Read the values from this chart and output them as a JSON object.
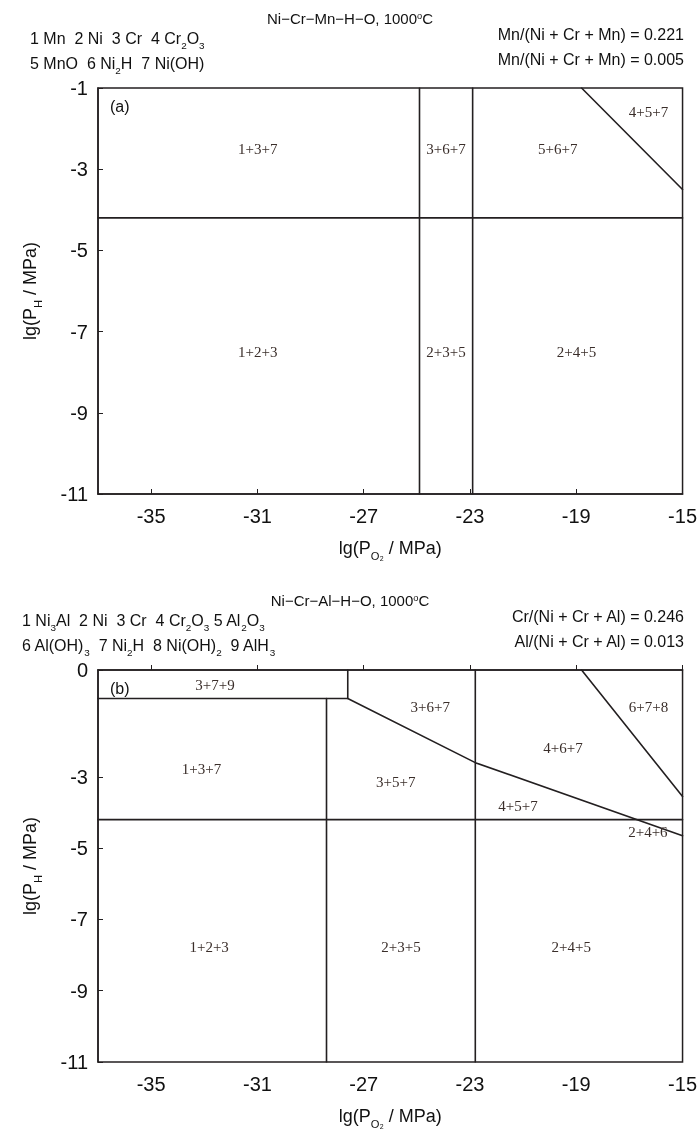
{
  "chart_data": [
    {
      "type": "line",
      "title": "Ni−Cr−Mn−H−O, 1000$^{o}$C",
      "xlabel": "lg(P$_{O₂}$ / MPa)",
      "ylabel": "lg(P$_{H}$ / MPa)",
      "xlim": [
        -37,
        -15
      ],
      "xticks": [
        -35,
        -31,
        -27,
        -23,
        -19,
        -15
      ],
      "ylim": [
        -11,
        -1
      ],
      "yticks": [
        -1,
        -3,
        -5,
        -7,
        -9,
        -11
      ],
      "series": [
        {
          "color": "#231f20",
          "x": [
            -24.9,
            -24.9
          ],
          "values": [
            -11,
            -1
          ]
        },
        {
          "color": "#231f20",
          "x": [
            -22.9,
            -22.9
          ],
          "values": [
            -11,
            -1
          ]
        },
        {
          "color": "#231f20",
          "x": [
            -37,
            -15
          ],
          "values": [
            -4.2,
            -4.2
          ]
        },
        {
          "color": "#231f20",
          "x": [
            -18.8,
            -15
          ],
          "values": [
            -1,
            -3.5
          ]
        }
      ],
      "annotations": [
        "1 Mn  2 Ni  3 Cr  4 Cr$_{2}$O$_{3}$",
        "5 MnO  6 Ni$_{2}$H  7 Ni(OH)",
        "Mn/(Ni + Cr + Mn) = 0.221",
        "Mn/(Ni + Cr + Mn) = 0.005",
        "(a)",
        "1+3+7",
        "3+6+7",
        "5+6+7",
        "4+5+7",
        "1+2+3",
        "2+3+5",
        "2+4+5"
      ]
    },
    {
      "type": "line",
      "title": "Ni−Cr−Al−H−O, 1000$^{o}$C",
      "xlabel": "lg(P$_{O₂}$ / MPa)",
      "ylabel": "lg(P$_{H}$ / MPa)",
      "xlim": [
        -37,
        -15
      ],
      "xticks": [
        -35,
        -31,
        -27,
        -23,
        -19,
        -15
      ],
      "ylim": [
        -11,
        0
      ],
      "yticks": [
        0,
        -3,
        -5,
        -7,
        -9,
        -11
      ],
      "series": [
        {
          "color": "#231f20",
          "x": [
            -28.4,
            -28.4
          ],
          "values": [
            -11,
            -0.8
          ]
        },
        {
          "color": "#231f20",
          "x": [
            -22.8,
            -22.8
          ],
          "values": [
            -11,
            0
          ]
        },
        {
          "color": "#231f20",
          "x": [
            -37,
            -15
          ],
          "values": [
            -4.2,
            -4.2
          ]
        },
        {
          "color": "#231f20",
          "x": [
            -37,
            -27.6,
            -27.6
          ],
          "values": [
            -0.8,
            -0.8,
            0
          ]
        },
        {
          "color": "#231f20",
          "x": [
            -27.6,
            -22.8,
            -15
          ],
          "values": [
            -0.8,
            -2.6,
            -4.65
          ]
        },
        {
          "color": "#231f20",
          "x": [
            -18.8,
            -15
          ],
          "values": [
            0,
            -3.55
          ]
        }
      ],
      "annotations": [
        "1 Ni$_{3}$Al  2 Ni  3 Cr  4 Cr$_{2}$O$_{3}$ 5 Al$_{2}$O$_{3}$",
        "6 Al(OH)$_{3}$  7 Ni$_{2}$H  8 Ni(OH)$_{2}$  9 AlH$_{3}$",
        "Cr/(Ni + Cr + Al) = 0.246",
        "Al/(Ni + Cr + Al) = 0.013",
        "(b)",
        "3+7+9",
        "3+6+7",
        "6+7+8",
        "4+6+7",
        "1+3+7",
        "3+5+7",
        "4+5+7",
        "2+4+6",
        "1+2+3",
        "2+3+5",
        "2+4+5"
      ]
    }
  ]
}
